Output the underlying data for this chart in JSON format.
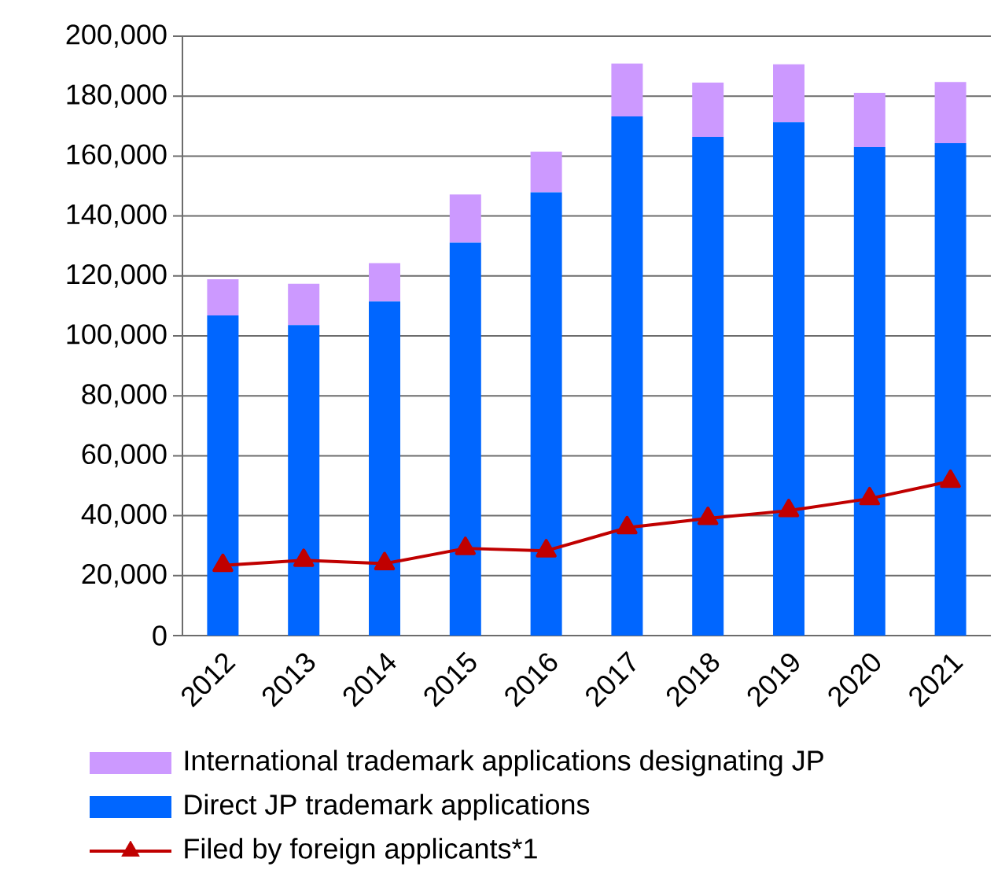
{
  "chart_data": {
    "type": "bar",
    "stacked": true,
    "categories": [
      "2012",
      "2013",
      "2014",
      "2015",
      "2016",
      "2017",
      "2018",
      "2019",
      "2020",
      "2021"
    ],
    "series": [
      {
        "name": "Direct JP trademark applications",
        "color": "#0066ff",
        "values": [
          106800,
          103600,
          111500,
          131100,
          147900,
          173200,
          166400,
          171300,
          163000,
          164300
        ]
      },
      {
        "name": "International trademark applications designating JP",
        "color": "#cc99ff",
        "values": [
          12100,
          13800,
          12800,
          16100,
          13600,
          17700,
          18100,
          19300,
          18100,
          20400
        ]
      },
      {
        "name": "Filed by foreign applicants*1",
        "type": "line",
        "color": "#c00000",
        "marker": "triangle",
        "line_style": "solid",
        "values": [
          23400,
          25100,
          24000,
          29100,
          28300,
          36000,
          39100,
          41700,
          45700,
          51500
        ]
      }
    ],
    "ylim": [
      0,
      200000
    ],
    "yticks": [
      {
        "value": 0,
        "label": "0"
      },
      {
        "value": 20000,
        "label": "20,000"
      },
      {
        "value": 40000,
        "label": "40,000"
      },
      {
        "value": 60000,
        "label": "60,000"
      },
      {
        "value": 80000,
        "label": "80,000"
      },
      {
        "value": 100000,
        "label": "100,000"
      },
      {
        "value": 120000,
        "label": "120,000"
      },
      {
        "value": 140000,
        "label": "140,000"
      },
      {
        "value": 160000,
        "label": "160,000"
      },
      {
        "value": 180000,
        "label": "180,000"
      },
      {
        "value": 200000,
        "label": "200,000"
      }
    ],
    "grid": "y",
    "legend": "bottom"
  }
}
